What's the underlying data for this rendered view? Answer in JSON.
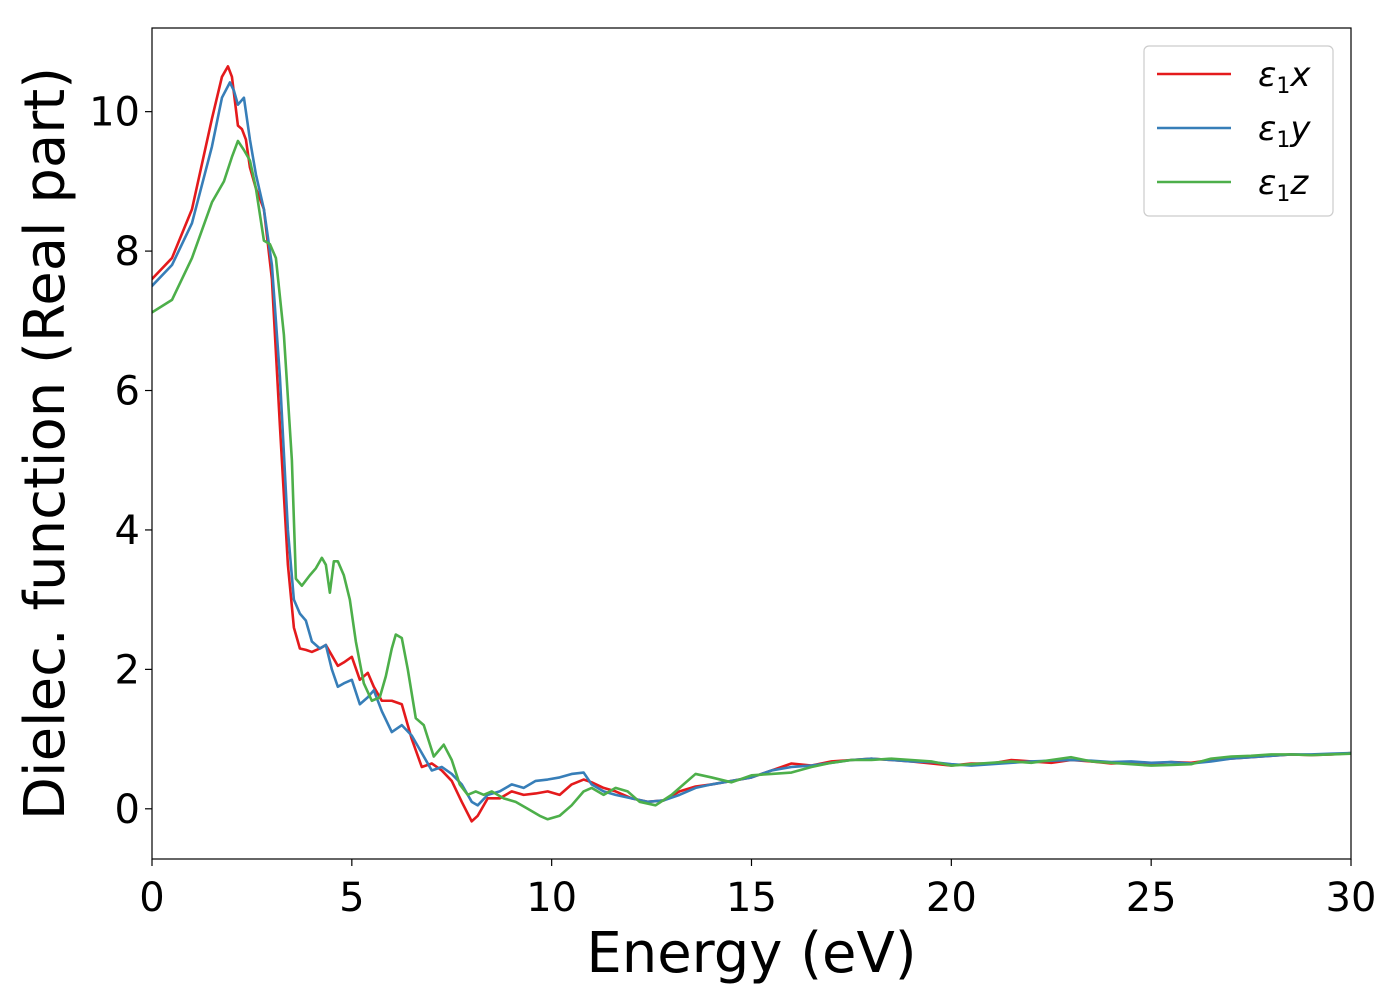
{
  "chart_data": {
    "type": "line",
    "xlabel": "Energy (eV)",
    "ylabel": "Dielec. function (Real part)",
    "xlim": [
      0,
      30
    ],
    "ylim": [
      -0.72,
      11.2
    ],
    "xticks": [
      0,
      5,
      10,
      15,
      20,
      25,
      30
    ],
    "yticks": [
      0,
      2,
      4,
      6,
      8,
      10
    ],
    "grid": false,
    "legend_position": "top-right",
    "series": [
      {
        "name": "ε1x",
        "legend_base": "ε",
        "legend_sub": "1",
        "legend_suffix": "x",
        "color": "#e41a1c",
        "x": [
          0,
          0.5,
          1.0,
          1.5,
          1.75,
          1.9,
          2.0,
          2.15,
          2.25,
          2.35,
          2.45,
          2.6,
          2.8,
          3.0,
          3.2,
          3.4,
          3.55,
          3.7,
          3.85,
          4.0,
          4.2,
          4.35,
          4.5,
          4.65,
          4.8,
          5.0,
          5.2,
          5.4,
          5.55,
          5.75,
          6.0,
          6.25,
          6.5,
          6.75,
          7.0,
          7.25,
          7.5,
          7.75,
          8.0,
          8.15,
          8.4,
          8.7,
          9.0,
          9.3,
          9.6,
          9.9,
          10.2,
          10.5,
          10.8,
          11.0,
          11.3,
          11.6,
          12.0,
          12.4,
          12.8,
          13.2,
          13.6,
          14.0,
          14.5,
          15.0,
          15.5,
          16.0,
          16.5,
          17.0,
          17.5,
          18.0,
          18.5,
          19.0,
          19.5,
          20.0,
          20.5,
          21.0,
          21.5,
          22.0,
          22.5,
          23.0,
          23.5,
          24.0,
          24.5,
          25.0,
          25.5,
          26.0,
          26.5,
          27.0,
          27.5,
          28.0,
          28.5,
          29.0,
          29.5,
          30.0
        ],
        "y": [
          7.6,
          7.9,
          8.6,
          9.9,
          10.5,
          10.65,
          10.5,
          9.8,
          9.75,
          9.6,
          9.2,
          8.9,
          8.6,
          7.6,
          5.5,
          3.5,
          2.6,
          2.3,
          2.28,
          2.25,
          2.3,
          2.35,
          2.2,
          2.05,
          2.1,
          2.18,
          1.85,
          1.95,
          1.75,
          1.55,
          1.55,
          1.5,
          1.0,
          0.6,
          0.65,
          0.55,
          0.4,
          0.1,
          -0.18,
          -0.1,
          0.15,
          0.15,
          0.25,
          0.2,
          0.22,
          0.25,
          0.2,
          0.35,
          0.42,
          0.38,
          0.3,
          0.25,
          0.15,
          0.1,
          0.12,
          0.25,
          0.32,
          0.35,
          0.4,
          0.45,
          0.55,
          0.65,
          0.62,
          0.68,
          0.7,
          0.72,
          0.7,
          0.68,
          0.65,
          0.62,
          0.65,
          0.65,
          0.7,
          0.68,
          0.66,
          0.7,
          0.68,
          0.65,
          0.66,
          0.65,
          0.67,
          0.66,
          0.7,
          0.72,
          0.74,
          0.76,
          0.78,
          0.77,
          0.78,
          0.8
        ]
      },
      {
        "name": "ε1y",
        "legend_base": "ε",
        "legend_sub": "1",
        "legend_suffix": "y",
        "color": "#377eb8",
        "x": [
          0,
          0.5,
          1.0,
          1.5,
          1.75,
          1.95,
          2.05,
          2.15,
          2.3,
          2.45,
          2.6,
          2.8,
          3.0,
          3.2,
          3.4,
          3.55,
          3.7,
          3.85,
          4.0,
          4.2,
          4.35,
          4.5,
          4.65,
          4.8,
          5.0,
          5.2,
          5.4,
          5.55,
          5.75,
          6.0,
          6.25,
          6.5,
          6.75,
          7.0,
          7.25,
          7.5,
          7.75,
          8.0,
          8.15,
          8.4,
          8.7,
          9.0,
          9.3,
          9.6,
          9.9,
          10.2,
          10.5,
          10.8,
          11.0,
          11.3,
          11.6,
          12.0,
          12.4,
          12.8,
          13.2,
          13.6,
          14.0,
          14.5,
          15.0,
          15.5,
          16.0,
          16.5,
          17.0,
          17.5,
          18.0,
          18.5,
          19.0,
          19.5,
          20.0,
          20.5,
          21.0,
          21.5,
          22.0,
          22.5,
          23.0,
          23.5,
          24.0,
          24.5,
          25.0,
          25.5,
          26.0,
          26.5,
          27.0,
          27.5,
          28.0,
          28.5,
          29.0,
          29.5,
          30.0
        ],
        "y": [
          7.5,
          7.8,
          8.4,
          9.5,
          10.2,
          10.42,
          10.3,
          10.1,
          10.2,
          9.6,
          9.1,
          8.6,
          7.8,
          6.2,
          4.0,
          3.0,
          2.8,
          2.7,
          2.4,
          2.3,
          2.35,
          2.0,
          1.75,
          1.8,
          1.85,
          1.5,
          1.6,
          1.7,
          1.4,
          1.1,
          1.2,
          1.05,
          0.8,
          0.55,
          0.6,
          0.5,
          0.35,
          0.1,
          0.05,
          0.2,
          0.25,
          0.35,
          0.3,
          0.4,
          0.42,
          0.45,
          0.5,
          0.52,
          0.35,
          0.25,
          0.2,
          0.15,
          0.1,
          0.12,
          0.2,
          0.3,
          0.35,
          0.4,
          0.45,
          0.55,
          0.6,
          0.62,
          0.66,
          0.7,
          0.72,
          0.7,
          0.68,
          0.67,
          0.64,
          0.62,
          0.64,
          0.66,
          0.68,
          0.69,
          0.7,
          0.69,
          0.67,
          0.68,
          0.66,
          0.67,
          0.65,
          0.68,
          0.72,
          0.74,
          0.76,
          0.78,
          0.78,
          0.79,
          0.8
        ]
      },
      {
        "name": "ε1z",
        "legend_base": "ε",
        "legend_sub": "1",
        "legend_suffix": "z",
        "color": "#4daf4a",
        "x": [
          0,
          0.5,
          1.0,
          1.5,
          1.8,
          2.0,
          2.15,
          2.3,
          2.45,
          2.6,
          2.8,
          2.95,
          3.1,
          3.3,
          3.5,
          3.6,
          3.75,
          3.95,
          4.1,
          4.25,
          4.35,
          4.45,
          4.55,
          4.65,
          4.8,
          4.95,
          5.1,
          5.3,
          5.5,
          5.7,
          5.85,
          6.0,
          6.1,
          6.25,
          6.4,
          6.6,
          6.8,
          7.05,
          7.3,
          7.5,
          7.7,
          7.9,
          8.1,
          8.3,
          8.5,
          8.8,
          9.1,
          9.4,
          9.7,
          9.9,
          10.2,
          10.5,
          10.8,
          11.0,
          11.3,
          11.6,
          11.9,
          12.2,
          12.6,
          13.0,
          13.3,
          13.6,
          14.0,
          14.5,
          15.0,
          15.5,
          16.0,
          16.5,
          17.0,
          17.5,
          18.0,
          18.5,
          19.0,
          19.5,
          20.0,
          20.5,
          21.0,
          21.5,
          22.0,
          22.5,
          23.0,
          23.5,
          24.0,
          24.5,
          25.0,
          25.5,
          26.0,
          26.5,
          27.0,
          27.5,
          28.0,
          28.5,
          29.0,
          29.5,
          30.0
        ],
        "y": [
          7.12,
          7.3,
          7.9,
          8.7,
          9.0,
          9.35,
          9.58,
          9.45,
          9.3,
          8.9,
          8.15,
          8.1,
          7.9,
          6.8,
          5.0,
          3.3,
          3.2,
          3.35,
          3.45,
          3.6,
          3.5,
          3.1,
          3.55,
          3.55,
          3.35,
          3.0,
          2.4,
          1.8,
          1.55,
          1.6,
          1.9,
          2.3,
          2.5,
          2.45,
          2.0,
          1.3,
          1.2,
          0.75,
          0.92,
          0.7,
          0.35,
          0.2,
          0.25,
          0.2,
          0.25,
          0.15,
          0.1,
          0.0,
          -0.1,
          -0.15,
          -0.1,
          0.05,
          0.25,
          0.3,
          0.2,
          0.3,
          0.25,
          0.1,
          0.05,
          0.2,
          0.35,
          0.5,
          0.45,
          0.38,
          0.48,
          0.5,
          0.52,
          0.6,
          0.66,
          0.7,
          0.7,
          0.72,
          0.7,
          0.68,
          0.62,
          0.64,
          0.66,
          0.68,
          0.66,
          0.7,
          0.74,
          0.68,
          0.66,
          0.64,
          0.62,
          0.63,
          0.64,
          0.72,
          0.75,
          0.76,
          0.78,
          0.78,
          0.77,
          0.78,
          0.79
        ]
      }
    ]
  }
}
